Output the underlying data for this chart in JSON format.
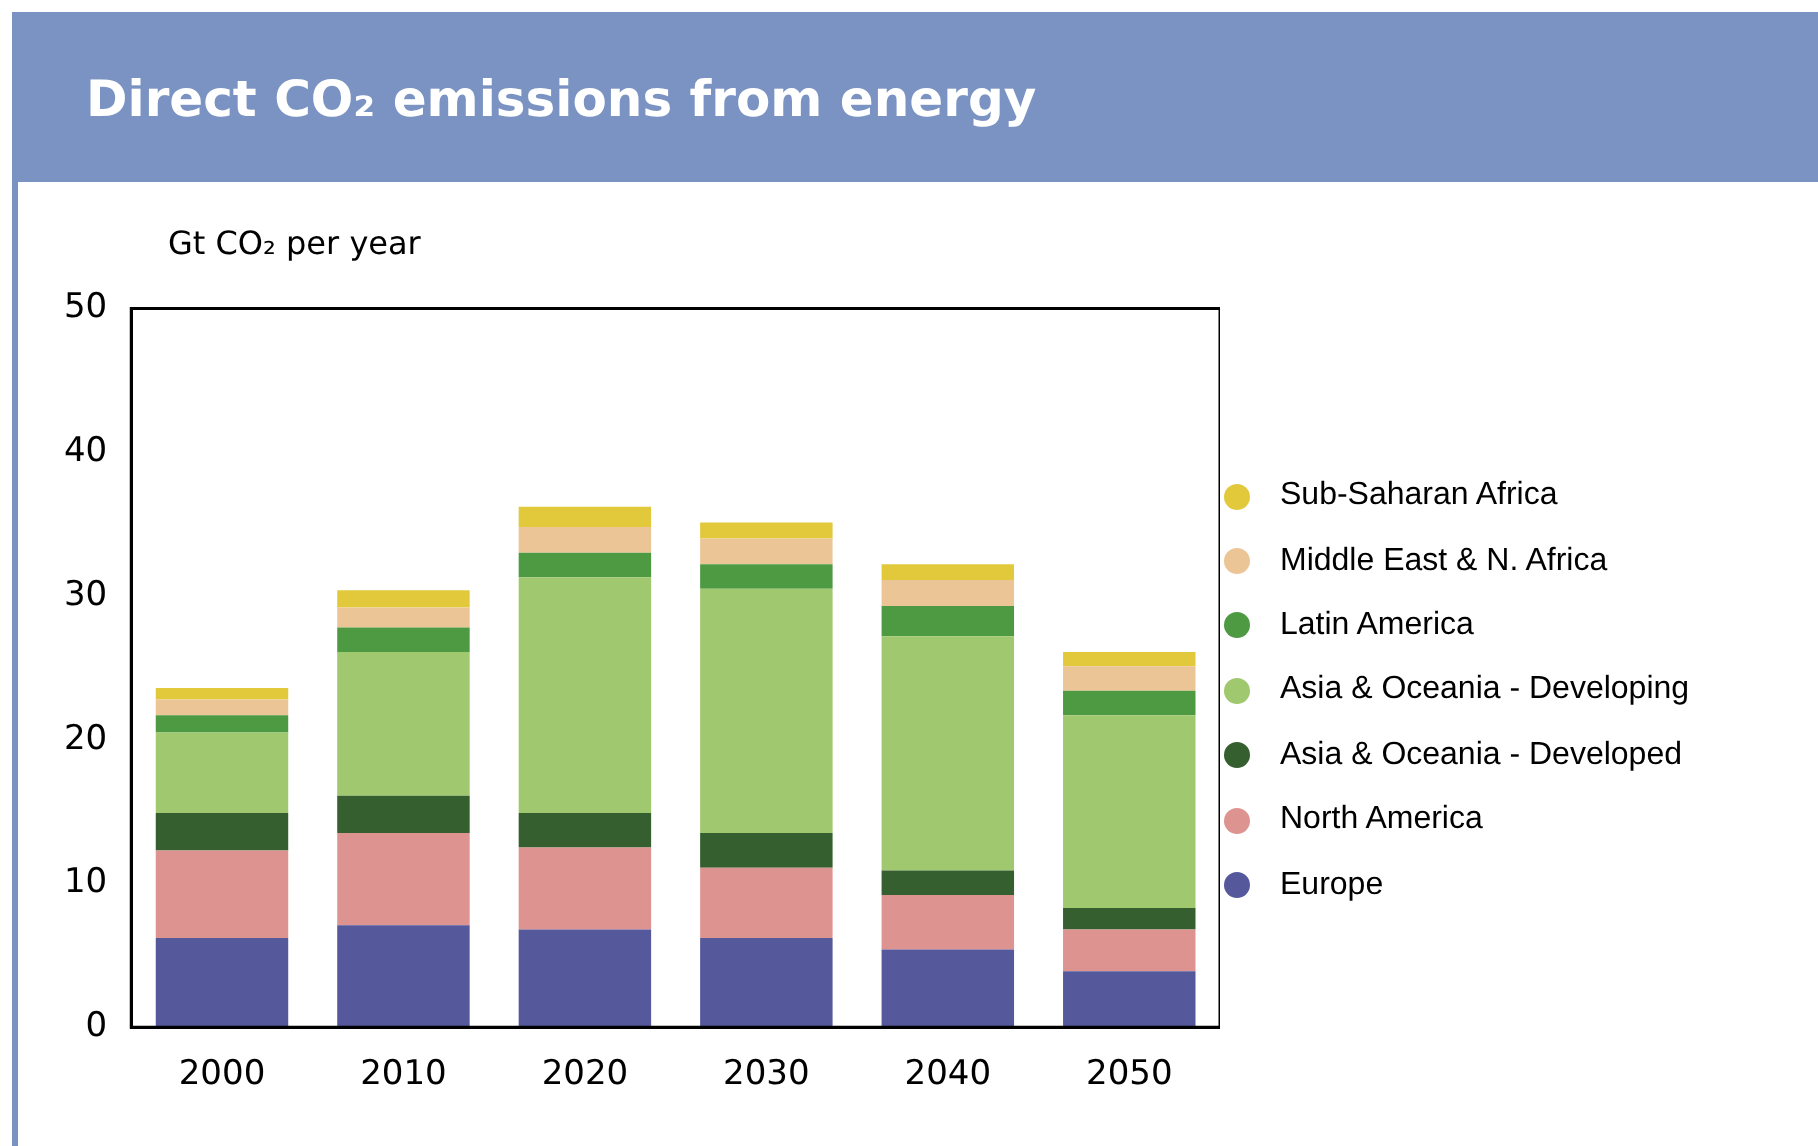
{
  "chart_data": {
    "type": "bar",
    "title": "Direct CO₂ emissions from energy",
    "ylabel": "Gt CO₂ per year",
    "stacked": true,
    "categories": [
      "2000",
      "2010",
      "2020",
      "2030",
      "2040",
      "2050"
    ],
    "series": [
      {
        "name": "Europe",
        "color": "#55599c",
        "values": [
          6.2,
          7.1,
          6.8,
          6.2,
          5.4,
          3.9
        ]
      },
      {
        "name": "North America",
        "color": "#dd9490",
        "values": [
          6.1,
          6.4,
          5.7,
          4.9,
          3.8,
          2.9
        ]
      },
      {
        "name": "Asia & Oceania - Developed",
        "color": "#365f2f",
        "values": [
          2.6,
          2.6,
          2.4,
          2.4,
          1.7,
          1.5
        ]
      },
      {
        "name": "Asia & Oceania - Developing",
        "color": "#a0c86e",
        "values": [
          5.6,
          10.0,
          16.4,
          17.0,
          16.3,
          13.4
        ]
      },
      {
        "name": "Latin America",
        "color": "#4e9a43",
        "values": [
          1.2,
          1.7,
          1.7,
          1.7,
          2.1,
          1.7
        ]
      },
      {
        "name": "Middle East & N. Africa",
        "color": "#ecc597",
        "values": [
          1.1,
          1.4,
          1.8,
          1.8,
          1.8,
          1.7
        ]
      },
      {
        "name": "Sub-Saharan Africa",
        "color": "#e2c93c",
        "values": [
          0.8,
          1.2,
          1.4,
          1.1,
          1.1,
          1.0
        ]
      }
    ],
    "ylim": [
      0,
      50
    ],
    "yticks": [
      0,
      10,
      20,
      30,
      40,
      50
    ],
    "grid": false,
    "legend": "right",
    "marker": "circle"
  }
}
